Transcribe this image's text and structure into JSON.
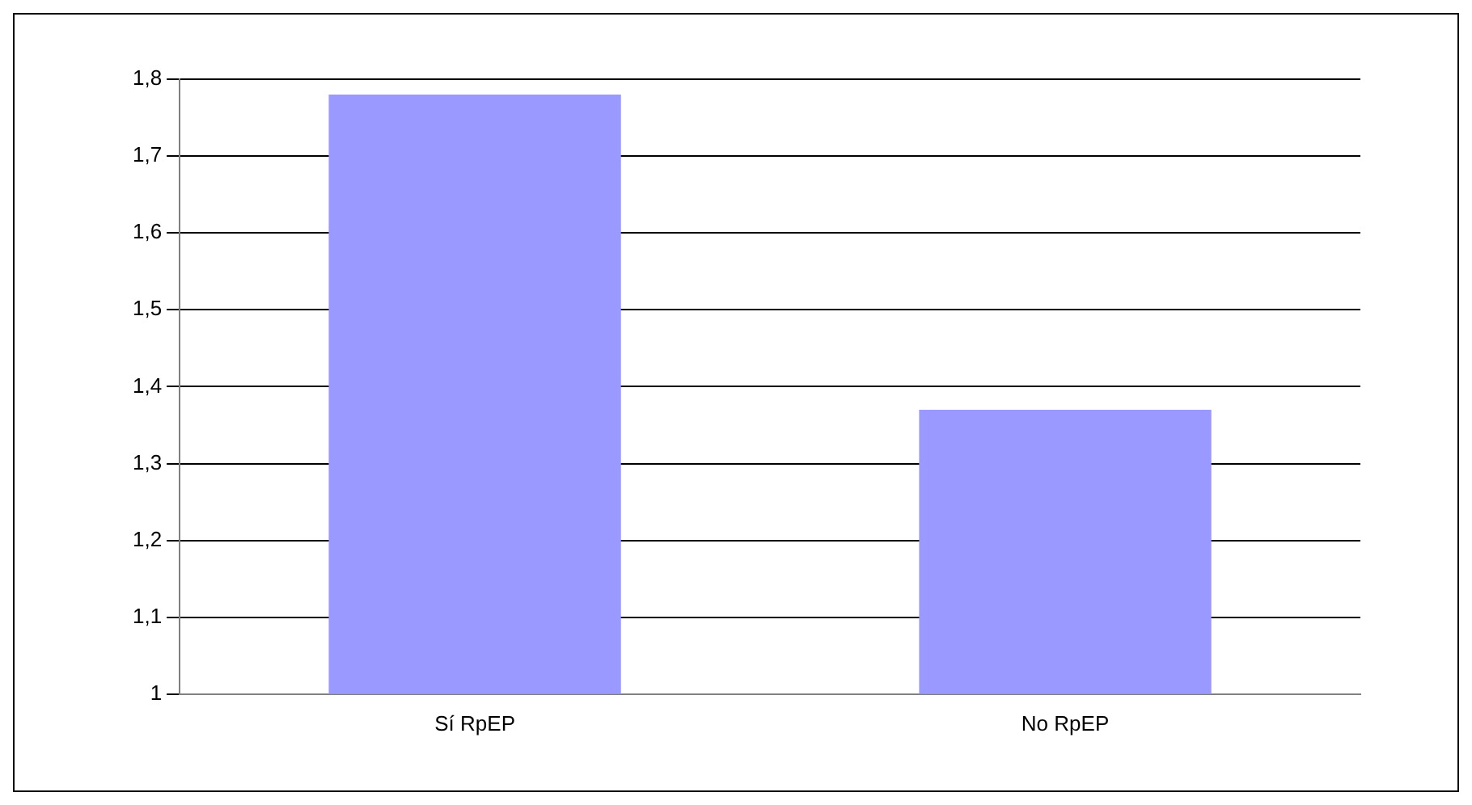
{
  "chart_data": {
    "type": "bar",
    "categories": [
      "Sí RpEP",
      "No RpEP"
    ],
    "values": [
      1.78,
      1.37
    ],
    "color": "#9999ff",
    "ylim": [
      1,
      1.8
    ],
    "yticks": [
      1,
      {
        "value": 1.1,
        "label": "1,1"
      },
      {
        "value": 1.2,
        "label": "1,2"
      },
      {
        "value": 1.3,
        "label": "1,3"
      },
      {
        "value": 1.4,
        "label": "1,4"
      },
      {
        "value": 1.5,
        "label": "1,5"
      },
      {
        "value": 1.6,
        "label": "1,6"
      },
      {
        "value": 1.7,
        "label": "1,7"
      },
      {
        "value": 1.8,
        "label": "1,8"
      }
    ],
    "grid": "y",
    "legend": false
  }
}
